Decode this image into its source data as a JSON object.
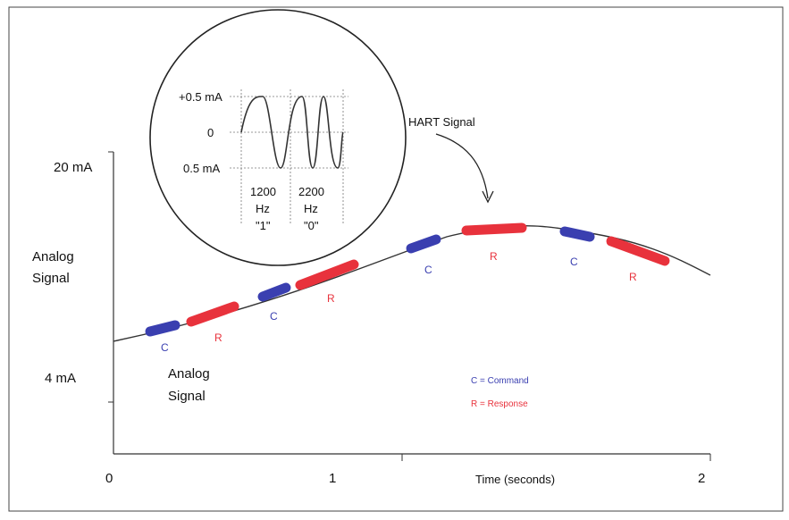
{
  "y_axis": {
    "top_label": "20 mA",
    "bottom_label": "4 mA",
    "title_line1": "Analog",
    "title_line2": "Signal"
  },
  "x_axis": {
    "ticks": [
      "0",
      "1",
      "2"
    ],
    "title": "Time (seconds)"
  },
  "curve_label": {
    "line1": "Analog",
    "line2": "Signal"
  },
  "inset": {
    "pos_label": "+0.5 mA",
    "zero_label": "0",
    "neg_label": "0.5 mA",
    "freq1": {
      "line1": "1200",
      "line2": "Hz",
      "line3": "\"1\""
    },
    "freq2": {
      "line1": "2200",
      "line2": "Hz",
      "line3": "\"0\""
    }
  },
  "hart_label": "HART Signal",
  "markers": {
    "command": "C",
    "response": "R"
  },
  "legend": {
    "command": "C = Command",
    "response": "R = Response"
  },
  "colors": {
    "command": "#3a3fb0",
    "response": "#e8323c",
    "line": "#333333"
  }
}
